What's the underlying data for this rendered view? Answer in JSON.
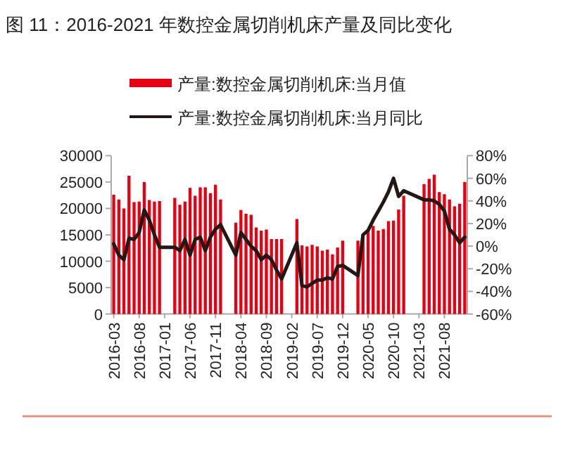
{
  "chart_data": {
    "type": "bar",
    "title": "图 11：2016-2021 年数控金属切削机床产量及同比变化",
    "categories": [
      "2016-03",
      null,
      null,
      null,
      null,
      "2016-08",
      null,
      null,
      null,
      null,
      "2017-01",
      null,
      null,
      null,
      null,
      "2017-06",
      null,
      null,
      null,
      null,
      "2017-11",
      null,
      null,
      null,
      null,
      "2018-04",
      null,
      null,
      null,
      null,
      "2018-09",
      null,
      null,
      null,
      null,
      "2019-02",
      null,
      null,
      null,
      null,
      "2019-07",
      null,
      null,
      null,
      null,
      "2019-12",
      null,
      null,
      null,
      null,
      "2020-05",
      null,
      null,
      null,
      null,
      "2020-10",
      null,
      null,
      null,
      null,
      "2021-03",
      null,
      null,
      null,
      null,
      "2021-08",
      null,
      null,
      null,
      null
    ],
    "series": [
      {
        "name": "产量:数控金属切削机床:当月值",
        "color": "#e60012",
        "values": [
          22600,
          21700,
          20000,
          26200,
          21200,
          21300,
          25000,
          21600,
          21300,
          21400,
          null,
          null,
          22000,
          20700,
          21300,
          23900,
          22400,
          24000,
          24000,
          22900,
          24500,
          21700,
          null,
          null,
          17300,
          19700,
          19000,
          18800,
          16400,
          15800,
          16000,
          14200,
          14200,
          14200,
          null,
          null,
          18000,
          13000,
          12800,
          13100,
          12800,
          12000,
          12200,
          11300,
          12600,
          13900,
          null,
          null,
          13900,
          15100,
          15800,
          16700,
          15800,
          16100,
          17600,
          17700,
          19800,
          22400,
          null,
          null,
          null,
          24600,
          25600,
          26400,
          23100,
          22700,
          21700,
          20400,
          20900,
          25000
        ]
      },
      {
        "name": "产量:数控金属切削机床:当月同比",
        "type": "line",
        "axis": "y2",
        "color": "#231815",
        "values": [
          2,
          -8,
          -12,
          7,
          6,
          12,
          32,
          23,
          10,
          -1,
          null,
          null,
          -1,
          -4,
          6,
          -8,
          6,
          8,
          -4,
          8,
          15,
          19,
          null,
          null,
          -8,
          12,
          6,
          0,
          -4,
          -12,
          -8,
          -12,
          -21,
          -29,
          null,
          null,
          3,
          -35,
          -36,
          -33,
          -30,
          -30,
          -28,
          -29,
          -18,
          -17,
          null,
          null,
          -26,
          10,
          14,
          23,
          31,
          39,
          48,
          60,
          44,
          49,
          null,
          null,
          null,
          41,
          41,
          40,
          37,
          31,
          15,
          10,
          3,
          8
        ]
      }
    ],
    "ylim": [
      0,
      30000
    ],
    "yticks": [
      0,
      5000,
      10000,
      15000,
      20000,
      25000,
      30000
    ],
    "y2lim": [
      -60,
      80
    ],
    "y2ticks": [
      {
        "value": -60,
        "label": "-60%"
      },
      {
        "value": -40,
        "label": "-40%"
      },
      {
        "value": -20,
        "label": "-20%"
      },
      {
        "value": 0,
        "label": "0%"
      },
      {
        "value": 20,
        "label": "20%"
      },
      {
        "value": 40,
        "label": "40%"
      },
      {
        "value": 60,
        "label": "60%"
      },
      {
        "value": 80,
        "label": "80%"
      }
    ],
    "legend": "top",
    "grid": false,
    "marker": "none",
    "line_style": "solid"
  }
}
